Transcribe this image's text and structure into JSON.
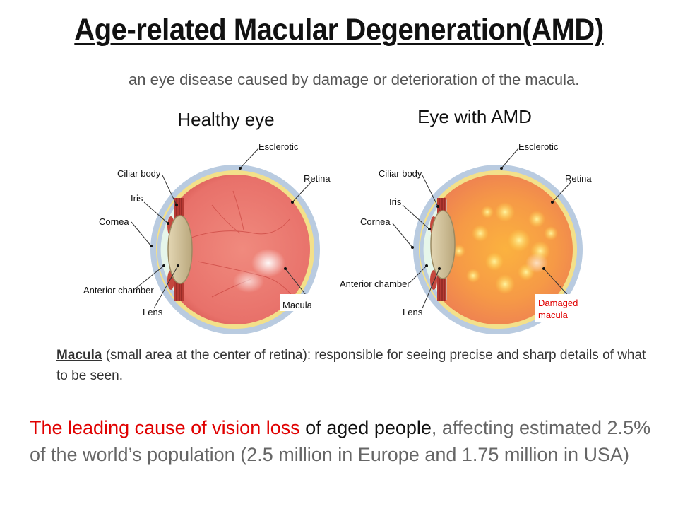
{
  "title": "Age-related Macular Degeneration(AMD)",
  "subtitle": "an eye disease caused by damage or deterioration of the macula.",
  "healthy": {
    "heading": "Healthy eye",
    "labels": {
      "esclerotic": "Esclerotic",
      "ciliar_body": "Ciliar body",
      "retina": "Retina",
      "iris": "Iris",
      "cornea": "Cornea",
      "anterior_chamber": "Anterior chamber",
      "lens": "Lens",
      "macula": "Macula"
    }
  },
  "amd": {
    "heading": "Eye with AMD",
    "labels": {
      "esclerotic": "Esclerotic",
      "ciliar_body": "Ciliar body",
      "retina": "Retina",
      "iris": "Iris",
      "cornea": "Cornea",
      "anterior_chamber": "Anterior chamber",
      "lens": "Lens",
      "damaged_line1": "Damaged",
      "damaged_line2": "macula"
    }
  },
  "macula_note": {
    "term": "Macula",
    "text": " (small area at the center of retina): responsible for seeing precise and sharp details of what to be seen."
  },
  "leading": {
    "red": "The leading cause of vision loss",
    "black": " of aged people",
    "rest": ", affecting estimated 2.5% of the world’s population (2.5 million in Europe and 1.75 million in USA)"
  },
  "colors": {
    "sclera": "#b9cbe0",
    "retina_yellow": "#f3e08a",
    "interior_red": "#e96f66",
    "ciliary": "#b53a33",
    "lens": "#cdbd94",
    "cornea": "#e6f6ea",
    "damaged_red": "#e00000",
    "amd_spots": "#ffd84a"
  }
}
